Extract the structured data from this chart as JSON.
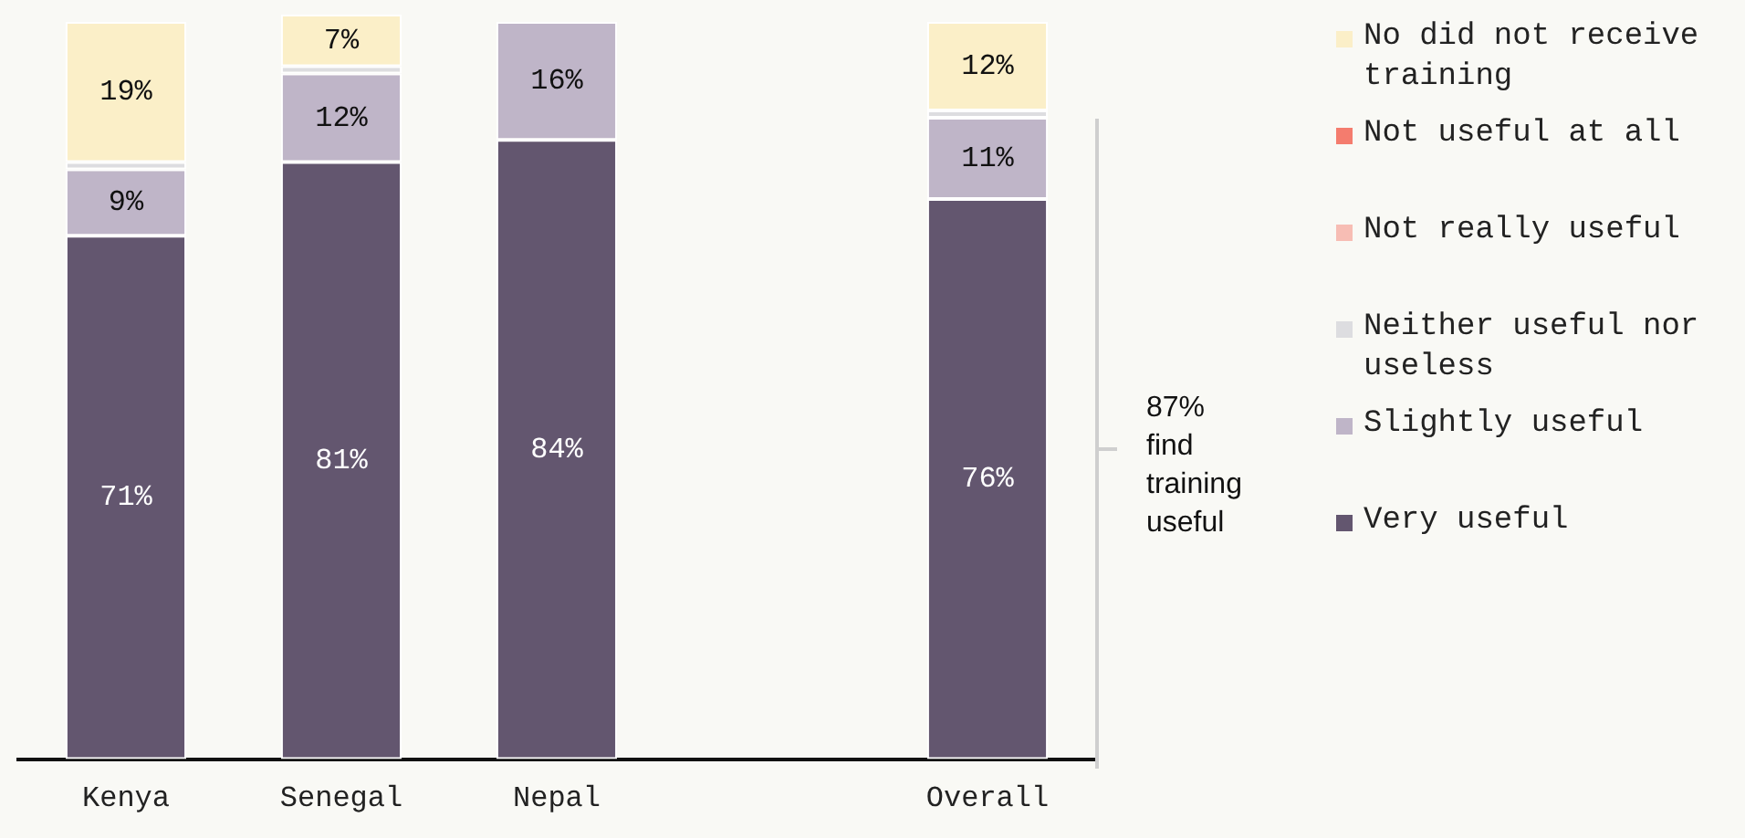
{
  "chart_data": {
    "type": "bar",
    "stacked": true,
    "categories": [
      "Kenya",
      "Senegal",
      "Nepal",
      null,
      "Overall"
    ],
    "ylim": [
      0,
      101
    ],
    "tick_labels": "x",
    "grid": false,
    "legend": "right",
    "annotations": [
      "87% find training useful"
    ],
    "series": [
      {
        "name": "Very useful",
        "color": "#63566f",
        "values": [
          71,
          81,
          84,
          null,
          76
        ],
        "value_labels": [
          "71%",
          "81%",
          "84%",
          null,
          "76%"
        ]
      },
      {
        "name": "Slightly useful",
        "color": "#bfb5c8",
        "values": [
          9,
          12,
          16,
          null,
          11
        ],
        "value_labels": [
          "9%",
          "12%",
          "16%",
          null,
          "11%"
        ]
      },
      {
        "name": "Neither useful nor useless",
        "color": "#dddde0",
        "values": [
          1,
          1,
          0,
          null,
          1
        ],
        "value_labels": [
          null,
          null,
          null,
          null,
          null
        ]
      },
      {
        "name": "Not really useful",
        "color": "#f7bdb4",
        "values": [
          0,
          0,
          0,
          null,
          0
        ],
        "value_labels": [
          null,
          null,
          null,
          null,
          null
        ]
      },
      {
        "name": "Not useful at all",
        "color": "#f47c6e",
        "values": [
          0,
          0,
          0,
          null,
          0
        ],
        "value_labels": [
          null,
          null,
          null,
          null,
          null
        ]
      },
      {
        "name": "No did not receive training",
        "color": "#fbefc8",
        "values": [
          19,
          7,
          0,
          null,
          12
        ],
        "value_labels": [
          "19%",
          "7%",
          null,
          null,
          "12%"
        ]
      }
    ]
  }
}
